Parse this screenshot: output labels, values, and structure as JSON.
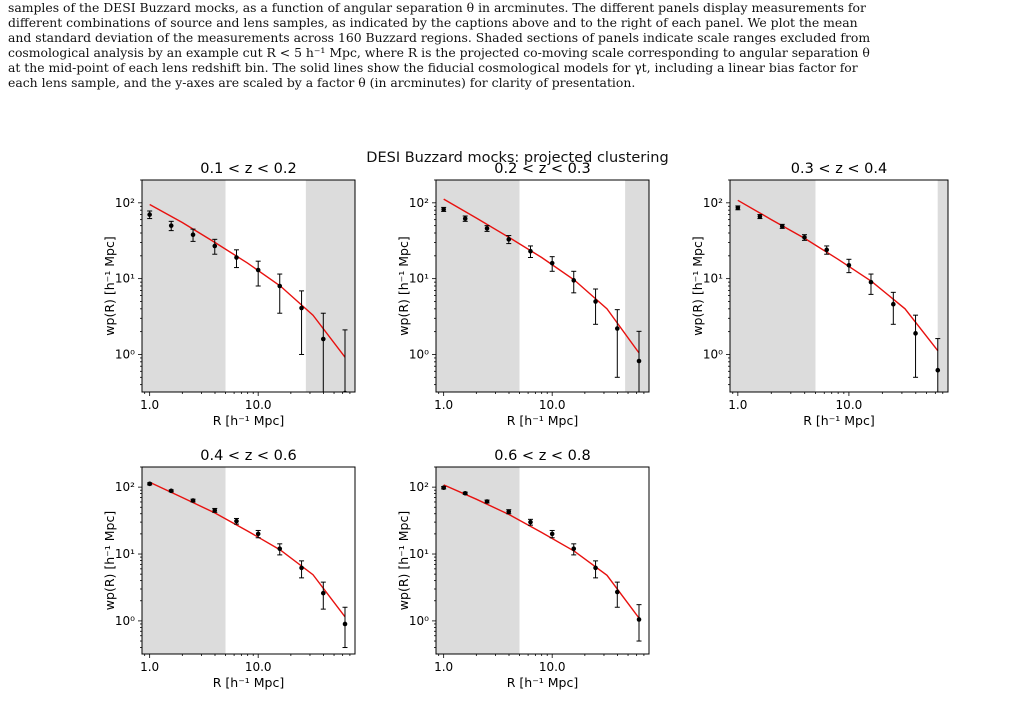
{
  "caption": {
    "lines": [
      "samples of the DESI Buzzard mocks, as a function of angular separation θ in arcminutes. The different panels display measurements for",
      "different combinations of source and lens samples, as indicated by the captions above and to the right of each panel. We plot the mean",
      "and standard deviation of the measurements across 160 Buzzard regions. Shaded sections of panels indicate scale ranges excluded from",
      "cosmological analysis by an example cut R < 5 h⁻¹ Mpc, where R is the projected co-moving scale corresponding to angular separation θ",
      "at the mid-point of each lens redshift bin. The solid lines show the fiducial cosmological models for γt, including a linear bias factor for",
      "each lens sample, and the y-axes are scaled by a factor θ (in arcminutes) for clarity of presentation."
    ]
  },
  "figure": {
    "title": "DESI Buzzard mocks: projected clustering"
  },
  "colors": {
    "model_line": "#e8110f",
    "points": "#000000",
    "shade": "#dcdcdc"
  },
  "chart_data": [
    {
      "type": "scatter",
      "title": "0.1 < z < 0.2",
      "xlabel": "R [h⁻¹ Mpc]",
      "ylabel": "wp(R) [h⁻¹ Mpc]",
      "xscale": "log",
      "yscale": "log",
      "xlim": [
        0.85,
        78
      ],
      "ylim": [
        0.32,
        200
      ],
      "xticks": [
        "1.0",
        "10.0"
      ],
      "yticks": [
        "10⁰",
        "10¹",
        "10²"
      ],
      "shaded_x": [
        [
          0.85,
          5.0
        ],
        [
          27.5,
          78
        ]
      ],
      "data": {
        "x": [
          1.0,
          1.58,
          2.51,
          3.98,
          6.31,
          10.0,
          15.8,
          25.1,
          39.8,
          63.1
        ],
        "y": [
          70,
          50,
          38,
          27,
          19,
          13,
          8.0,
          4.1,
          1.6,
          0.31
        ],
        "yerr_low": [
          8,
          7,
          7,
          6,
          5,
          5,
          4.5,
          3.1,
          1.6,
          0.3
        ],
        "yerr_high": [
          8,
          7,
          7,
          6,
          5,
          4,
          3.5,
          2.8,
          1.9,
          1.8
        ]
      },
      "model": {
        "x": [
          1.0,
          2.0,
          4.0,
          8.0,
          16.0,
          32.0,
          63.1
        ],
        "y": [
          95,
          55,
          30,
          16,
          8.0,
          3.3,
          0.92
        ]
      }
    },
    {
      "type": "scatter",
      "title": "0.2 < z < 0.3",
      "xlabel": "R [h⁻¹ Mpc]",
      "ylabel": "wp(R) [h⁻¹ Mpc]",
      "xscale": "log",
      "yscale": "log",
      "xlim": [
        0.85,
        78
      ],
      "ylim": [
        0.32,
        200
      ],
      "xticks": [
        "1.0",
        "10.0"
      ],
      "yticks": [
        "10⁰",
        "10¹",
        "10²"
      ],
      "shaded_x": [
        [
          0.85,
          5.0
        ],
        [
          47,
          78
        ]
      ],
      "data": {
        "x": [
          1.0,
          1.58,
          2.51,
          3.98,
          6.31,
          10.0,
          15.8,
          25.1,
          39.8,
          63.1
        ],
        "y": [
          82,
          62,
          46,
          33,
          23,
          16,
          9.5,
          5.0,
          2.2,
          0.82
        ],
        "yerr_low": [
          5,
          5,
          4,
          4,
          4,
          3.5,
          3,
          2.5,
          1.7,
          0.5
        ],
        "yerr_high": [
          5,
          5,
          4,
          4,
          4,
          3.5,
          3,
          2.3,
          1.7,
          1.2
        ]
      },
      "model": {
        "x": [
          1.0,
          2.0,
          4.0,
          8.0,
          16.0,
          32.0,
          63.1
        ],
        "y": [
          112,
          63,
          35,
          19,
          9.6,
          4.0,
          1.05
        ]
      }
    },
    {
      "type": "scatter",
      "title": "0.3 < z < 0.4",
      "xlabel": "R [h⁻¹ Mpc]",
      "ylabel": "wp(R) [h⁻¹ Mpc]",
      "xscale": "log",
      "yscale": "log",
      "xlim": [
        0.85,
        78
      ],
      "ylim": [
        0.32,
        200
      ],
      "xticks": [
        "1.0",
        "10.0"
      ],
      "yticks": [
        "10⁰",
        "10¹",
        "10²"
      ],
      "shaded_x": [
        [
          0.85,
          5.0
        ],
        [
          63,
          78
        ]
      ],
      "data": {
        "x": [
          1.0,
          1.58,
          2.51,
          3.98,
          6.31,
          10.0,
          15.8,
          25.1,
          39.8,
          63.1
        ],
        "y": [
          86,
          66,
          49,
          35,
          24,
          15,
          9.0,
          4.6,
          1.9,
          0.62
        ],
        "yerr_low": [
          5,
          4,
          3,
          3,
          3,
          3,
          2.8,
          2.1,
          1.4,
          0.45
        ],
        "yerr_high": [
          5,
          4,
          3,
          3,
          3,
          3,
          2.5,
          2.0,
          1.4,
          1.0
        ]
      },
      "model": {
        "x": [
          1.0,
          2.0,
          4.0,
          8.0,
          16.0,
          32.0,
          63.1
        ],
        "y": [
          108,
          60,
          34,
          18,
          9.2,
          4.0,
          1.12
        ]
      }
    },
    {
      "type": "scatter",
      "title": "0.4 < z < 0.6",
      "xlabel": "R [h⁻¹ Mpc]",
      "ylabel": "wp(R) [h⁻¹ Mpc]",
      "xscale": "log",
      "yscale": "log",
      "xlim": [
        0.85,
        78
      ],
      "ylim": [
        0.32,
        200
      ],
      "xticks": [
        "1.0",
        "10.0"
      ],
      "yticks": [
        "10⁰",
        "10¹",
        "10²"
      ],
      "shaded_x": [
        [
          0.85,
          5.0
        ]
      ],
      "data": {
        "x": [
          1.0,
          1.58,
          2.51,
          3.98,
          6.31,
          10.0,
          15.8,
          25.1,
          39.8,
          63.1
        ],
        "y": [
          112,
          88,
          63,
          45,
          31,
          20,
          12,
          6.2,
          2.6,
          0.9
        ],
        "yerr_low": [
          4,
          3,
          3,
          3,
          3,
          2.5,
          2.3,
          1.8,
          1.1,
          0.5
        ],
        "yerr_high": [
          4,
          3,
          3,
          3,
          3,
          2.5,
          2.2,
          1.7,
          1.2,
          0.7
        ]
      },
      "model": {
        "x": [
          1.0,
          2.0,
          4.0,
          8.0,
          16.0,
          32.0,
          63.1
        ],
        "y": [
          118,
          70,
          41,
          22,
          11.5,
          4.9,
          1.15
        ]
      }
    },
    {
      "type": "scatter",
      "title": "0.6 < z < 0.8",
      "xlabel": "R [h⁻¹ Mpc]",
      "ylabel": "wp(R) [h⁻¹ Mpc]",
      "xscale": "log",
      "yscale": "log",
      "xlim": [
        0.85,
        78
      ],
      "ylim": [
        0.32,
        200
      ],
      "xticks": [
        "1.0",
        "10.0"
      ],
      "yticks": [
        "10⁰",
        "10¹",
        "10²"
      ],
      "shaded_x": [
        [
          0.85,
          5.0
        ]
      ],
      "data": {
        "x": [
          1.0,
          1.58,
          2.51,
          3.98,
          6.31,
          10.0,
          15.8,
          25.1,
          39.8,
          63.1
        ],
        "y": [
          98,
          81,
          61,
          43,
          30,
          20,
          12,
          6.2,
          2.7,
          1.05
        ],
        "yerr_low": [
          4,
          3,
          3,
          3,
          3,
          2.5,
          2.3,
          1.8,
          1.1,
          0.55
        ],
        "yerr_high": [
          4,
          3,
          3,
          3,
          3,
          2.5,
          2.2,
          1.7,
          1.1,
          0.7
        ]
      },
      "model": {
        "x": [
          1.0,
          2.0,
          4.0,
          8.0,
          16.0,
          32.0,
          63.1
        ],
        "y": [
          108,
          66,
          39,
          21,
          11.0,
          4.8,
          1.1
        ]
      }
    }
  ]
}
